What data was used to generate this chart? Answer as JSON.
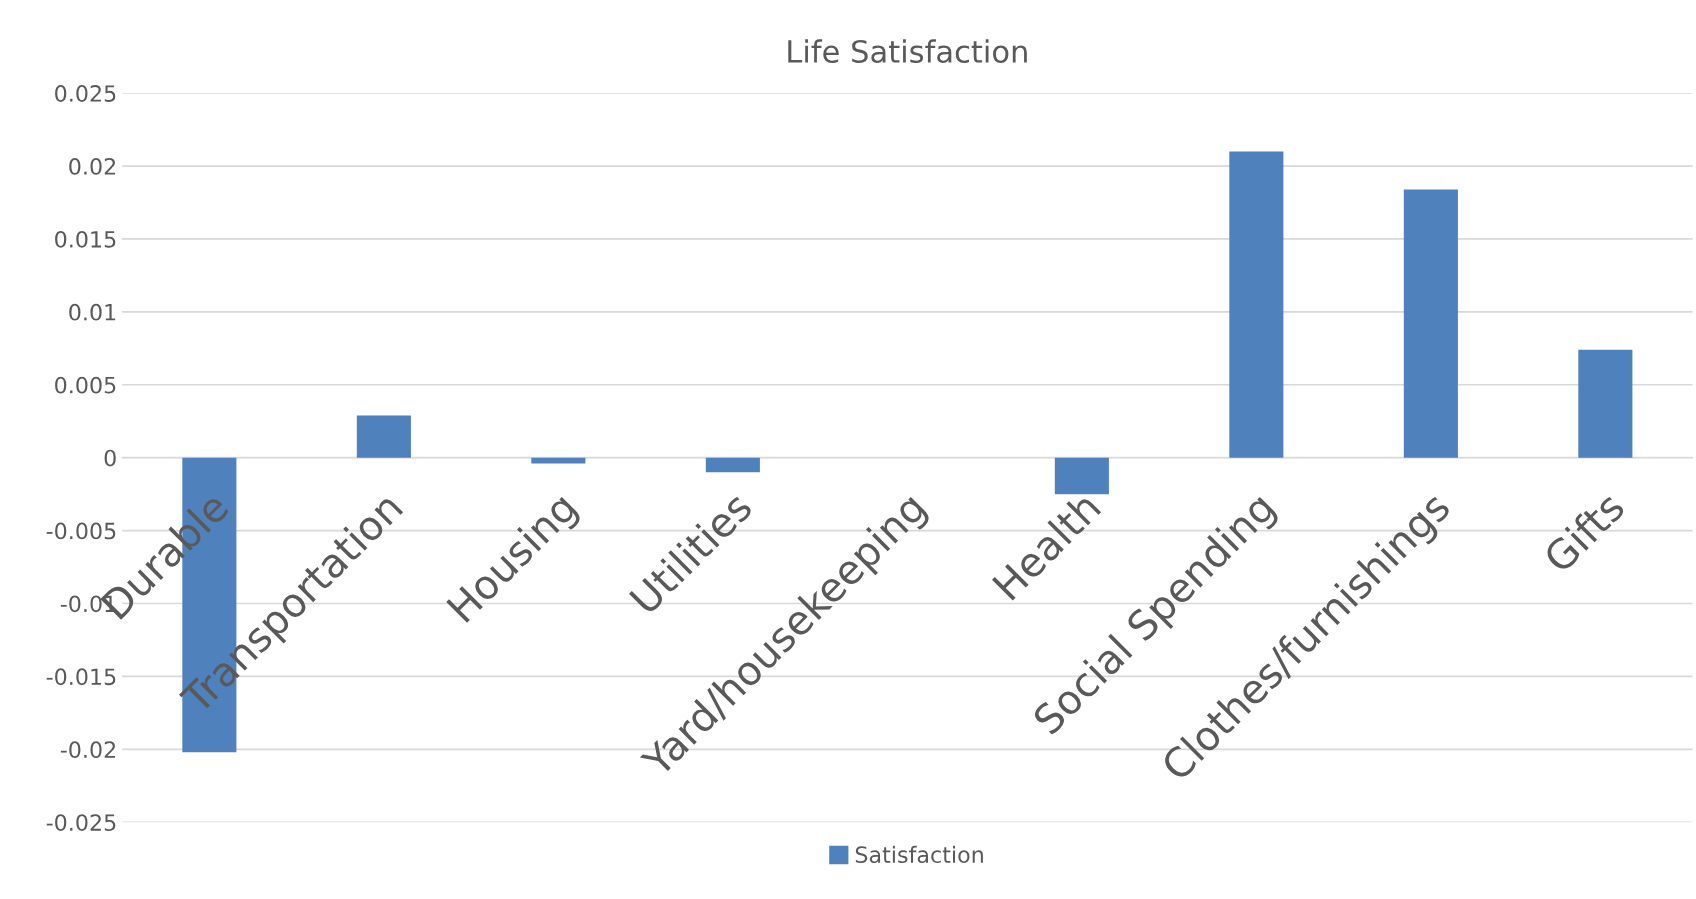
{
  "chart_data": {
    "type": "bar",
    "title": "Life Satisfaction",
    "categories": [
      "Durable",
      "Transportation",
      "Housing",
      "Utilities",
      "Yard/housekeeping",
      "Health",
      "Social Spending",
      "Clothes/furnishings",
      "Gifts"
    ],
    "series": [
      {
        "name": "Satisfaction",
        "color": "#4f81bd",
        "values": [
          -0.0202,
          0.0029,
          -0.0004,
          -0.001,
          0,
          -0.0025,
          0.021,
          0.0184,
          0.0074
        ]
      }
    ],
    "ylim": [
      -0.025,
      0.025
    ],
    "yticks": [
      -0.025,
      -0.02,
      -0.015,
      -0.01,
      -0.005,
      0,
      0.005,
      0.01,
      0.015,
      0.02,
      0.025
    ],
    "grid": "y",
    "legend": "bottom"
  }
}
